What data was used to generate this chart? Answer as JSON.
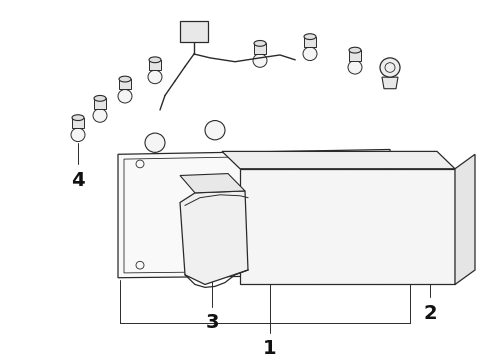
{
  "background_color": "#ffffff",
  "line_color": "#2a2a2a",
  "label_color": "#111111",
  "figsize": [
    4.9,
    3.6
  ],
  "dpi": 100,
  "label_fontsize": 14,
  "label_fontweight": "bold"
}
